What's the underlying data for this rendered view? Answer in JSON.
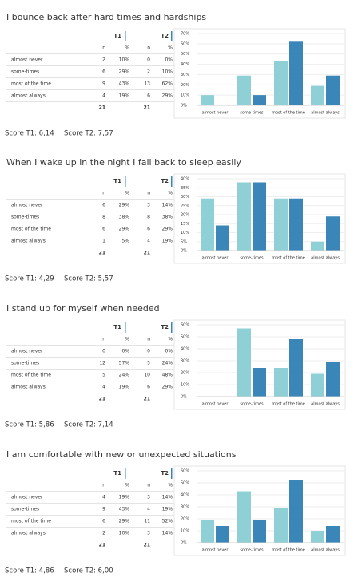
{
  "sections": [
    {
      "title": "I bounce back after hard times and hardships",
      "table": {
        "groups": [
          "T1",
          "T2"
        ],
        "columns": [
          "n",
          "%",
          "n",
          "%"
        ],
        "rows": [
          [
            "almost never",
            2,
            "10%",
            0,
            "0%"
          ],
          [
            "some-times",
            6,
            "29%",
            2,
            "10%"
          ],
          [
            "most of the time",
            9,
            "43%",
            13,
            "62%"
          ],
          [
            "almost always",
            4,
            "19%",
            6,
            "29%"
          ]
        ],
        "totals": [
          21,
          21
        ]
      },
      "scores": [
        "Score T1:  6,14",
        "Score T2: 7,57"
      ]
    },
    {
      "title": "When I wake up in the night I fall back to sleep easily",
      "table": {
        "groups": [
          "T1",
          "T2"
        ],
        "columns": [
          "n",
          "%",
          "n",
          "%"
        ],
        "rows": [
          [
            "almost never",
            6,
            "29%",
            3,
            "14%"
          ],
          [
            "some-times",
            8,
            "38%",
            8,
            "38%"
          ],
          [
            "most of the time",
            6,
            "29%",
            6,
            "29%"
          ],
          [
            "almost always",
            1,
            "5%",
            4,
            "19%"
          ]
        ],
        "totals": [
          21,
          21
        ]
      },
      "scores": [
        "Score T1: 4,29",
        "Score T2: 5,57"
      ]
    },
    {
      "title": "I stand up for myself when needed",
      "table": {
        "groups": [
          "T1",
          "T2"
        ],
        "columns": [
          "n",
          "%",
          "n",
          "%"
        ],
        "rows": [
          [
            "almost never",
            0,
            "0%",
            0,
            "0%"
          ],
          [
            "some-times",
            12,
            "57%",
            5,
            "24%"
          ],
          [
            "most of the time",
            5,
            "24%",
            10,
            "48%"
          ],
          [
            "almost always",
            4,
            "19%",
            6,
            "29%"
          ]
        ],
        "totals": [
          21,
          21
        ]
      },
      "scores": [
        "Score T1:  5,86",
        "Score T2: 7,14"
      ]
    },
    {
      "title": "I am comfortable with new or unexpected situations",
      "table": {
        "groups": [
          "T1",
          "T2"
        ],
        "columns": [
          "n",
          "%",
          "n",
          "%"
        ],
        "rows": [
          [
            "almost never",
            4,
            "19%",
            3,
            "14%"
          ],
          [
            "some-times",
            9,
            "43%",
            4,
            "19%"
          ],
          [
            "most of the time",
            6,
            "29%",
            11,
            "52%"
          ],
          [
            "almost always",
            2,
            "10%",
            3,
            "14%"
          ]
        ],
        "totals": [
          21,
          21
        ]
      },
      "scores": [
        "Score T1: 4,86",
        "Score T2: 6,00"
      ]
    }
  ],
  "chart_data": [
    {
      "type": "bar",
      "categories": [
        "almost never",
        "some-times",
        "most of the time",
        "almost always"
      ],
      "series": [
        {
          "color": "#8fd0d6",
          "values": [
            10,
            29,
            43,
            19
          ]
        },
        {
          "color": "#3b86b9",
          "values": [
            0,
            10,
            62,
            29
          ]
        }
      ],
      "ylim": [
        0,
        70
      ],
      "yticks": [
        {
          "value": 0,
          "label": "0%"
        },
        {
          "value": 10,
          "label": "10%"
        },
        {
          "value": 20,
          "label": "20%"
        },
        {
          "value": 30,
          "label": "30%"
        },
        {
          "value": 40,
          "label": "40%"
        },
        {
          "value": 50,
          "label": "50%"
        },
        {
          "value": 60,
          "label": "60%"
        },
        {
          "value": 70,
          "label": "70%"
        }
      ],
      "grid": true
    },
    {
      "type": "bar",
      "categories": [
        "almost never",
        "some-times",
        "most of the time",
        "almost always"
      ],
      "series": [
        {
          "color": "#8fd0d6",
          "values": [
            29,
            38,
            29,
            5
          ]
        },
        {
          "color": "#3b86b9",
          "values": [
            14,
            38,
            29,
            19
          ]
        }
      ],
      "ylim": [
        0,
        40
      ],
      "yticks": [
        {
          "value": 0,
          "label": "0%"
        },
        {
          "value": 5,
          "label": "5%"
        },
        {
          "value": 10,
          "label": "10%"
        },
        {
          "value": 15,
          "label": "15%"
        },
        {
          "value": 20,
          "label": "20%"
        },
        {
          "value": 25,
          "label": "25%"
        },
        {
          "value": 30,
          "label": "30%"
        },
        {
          "value": 35,
          "label": "35%"
        },
        {
          "value": 40,
          "label": "40%"
        }
      ],
      "grid": true
    },
    {
      "type": "bar",
      "categories": [
        "almost never",
        "some-times",
        "most of the time",
        "almost always"
      ],
      "series": [
        {
          "color": "#8fd0d6",
          "values": [
            0,
            57,
            24,
            19
          ]
        },
        {
          "color": "#3b86b9",
          "values": [
            0,
            24,
            48,
            29
          ]
        }
      ],
      "ylim": [
        0,
        60
      ],
      "yticks": [
        {
          "value": 0,
          "label": "0%"
        },
        {
          "value": 10,
          "label": "10%"
        },
        {
          "value": 20,
          "label": "20%"
        },
        {
          "value": 30,
          "label": "30%"
        },
        {
          "value": 40,
          "label": "40%"
        },
        {
          "value": 50,
          "label": "50%"
        },
        {
          "value": 60,
          "label": "60%"
        }
      ],
      "grid": true
    },
    {
      "type": "bar",
      "categories": [
        "almost never",
        "some-times",
        "most of the time",
        "almost always"
      ],
      "series": [
        {
          "color": "#8fd0d6",
          "values": [
            19,
            43,
            29,
            10
          ]
        },
        {
          "color": "#3b86b9",
          "values": [
            14,
            19,
            52,
            14
          ]
        }
      ],
      "ylim": [
        0,
        60
      ],
      "yticks": [
        {
          "value": 0,
          "label": "0%"
        },
        {
          "value": 10,
          "label": "10%"
        },
        {
          "value": 20,
          "label": "20%"
        },
        {
          "value": 30,
          "label": "30%"
        },
        {
          "value": 40,
          "label": "40%"
        },
        {
          "value": 50,
          "label": "50%"
        },
        {
          "value": 60,
          "label": "60%"
        }
      ],
      "grid": true
    }
  ]
}
